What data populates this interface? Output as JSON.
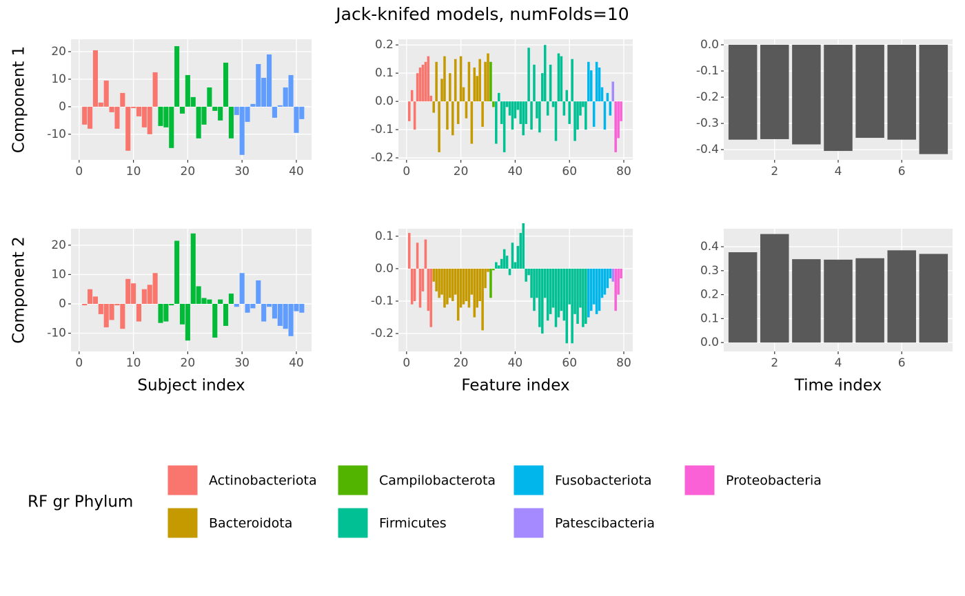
{
  "figure_title": "Jack-knifed models, numFolds=10",
  "legend": {
    "title": "RF gr Phylum",
    "items": [
      {
        "name": "Actinobacteriota",
        "color": "#F8766D"
      },
      {
        "name": "Bacteroidota",
        "color": "#C49A00"
      },
      {
        "name": "Campilobacterota",
        "color": "#53B400"
      },
      {
        "name": "Firmicutes",
        "color": "#00C094"
      },
      {
        "name": "Fusobacteriota",
        "color": "#00B6EB"
      },
      {
        "name": "Patescibacteria",
        "color": "#A58AFF"
      },
      {
        "name": "Proteobacteria",
        "color": "#FB61D7"
      }
    ]
  },
  "chart_data": [
    {
      "type": "bar",
      "ylabel": "Component 1",
      "x": [
        1,
        2,
        3,
        4,
        5,
        6,
        7,
        8,
        9,
        10,
        11,
        12,
        13,
        14,
        15,
        16,
        17,
        18,
        19,
        20,
        21,
        22,
        23,
        24,
        25,
        26,
        27,
        28,
        29,
        30,
        31,
        32,
        33,
        34,
        35,
        36,
        37,
        38,
        39,
        40,
        41
      ],
      "values": [
        -6.5,
        -8,
        20.5,
        1.5,
        9.5,
        -2,
        -8,
        5,
        -16,
        -0.5,
        -3.5,
        -7.5,
        -10,
        12.5,
        -7,
        -7.5,
        -15,
        22,
        -2.5,
        11.5,
        3.5,
        -11.5,
        -6.5,
        7,
        -1.5,
        -5,
        16,
        -11.5,
        -3,
        -17.5,
        -5.5,
        1,
        15.5,
        10.5,
        19,
        -4,
        0.5,
        7,
        11.5,
        -9.5,
        -4.5
      ],
      "colors": [
        "#F8766D",
        "#F8766D",
        "#F8766D",
        "#F8766D",
        "#F8766D",
        "#F8766D",
        "#F8766D",
        "#F8766D",
        "#F8766D",
        "#F8766D",
        "#F8766D",
        "#F8766D",
        "#F8766D",
        "#F8766D",
        "#00BA38",
        "#00BA38",
        "#00BA38",
        "#00BA38",
        "#00BA38",
        "#00BA38",
        "#00BA38",
        "#00BA38",
        "#00BA38",
        "#00BA38",
        "#00BA38",
        "#00BA38",
        "#00BA38",
        "#00BA38",
        "#619CFF",
        "#619CFF",
        "#619CFF",
        "#619CFF",
        "#619CFF",
        "#619CFF",
        "#619CFF",
        "#619CFF",
        "#619CFF",
        "#619CFF",
        "#619CFF",
        "#619CFF",
        "#619CFF"
      ],
      "xlim": [
        -1.5,
        42.8
      ],
      "xticks": [
        0,
        10,
        20,
        30,
        40
      ],
      "ylim": [
        -19.3,
        24.5
      ],
      "yticks": [
        -10,
        0,
        10,
        20
      ],
      "grid": true
    },
    {
      "type": "bar",
      "x": [
        1,
        2,
        3,
        4,
        5,
        6,
        7,
        8,
        9,
        10,
        11,
        12,
        13,
        14,
        15,
        16,
        17,
        18,
        19,
        20,
        21,
        22,
        23,
        24,
        25,
        26,
        27,
        28,
        29,
        30,
        31,
        32,
        33,
        34,
        35,
        36,
        37,
        38,
        39,
        40,
        41,
        42,
        43,
        44,
        45,
        46,
        47,
        48,
        49,
        50,
        51,
        52,
        53,
        54,
        55,
        56,
        57,
        58,
        59,
        60,
        61,
        62,
        63,
        64,
        65,
        66,
        67,
        68,
        69,
        70,
        71,
        72,
        73,
        74,
        75,
        76,
        77,
        78,
        79
      ],
      "values": [
        -0.07,
        0.04,
        -0.1,
        0.1,
        0.12,
        0.13,
        0.14,
        0.16,
        0.02,
        -0.04,
        0.14,
        -0.18,
        0.08,
        0.16,
        -0.1,
        0.1,
        -0.12,
        0.15,
        -0.08,
        0.16,
        0.05,
        -0.06,
        0.14,
        -0.15,
        0.12,
        0.09,
        0.15,
        -0.09,
        0.14,
        0.17,
        0.14,
        -0.02,
        -0.15,
        0.03,
        -0.08,
        -0.18,
        -0.02,
        -0.05,
        -0.1,
        -0.06,
        -0.03,
        -0.08,
        -0.12,
        -0.08,
        0.19,
        -0.1,
        0.13,
        -0.06,
        -0.11,
        0.1,
        0.2,
        -0.05,
        0.13,
        -0.02,
        -0.14,
        0.17,
        0.16,
        -0.05,
        0.04,
        -0.08,
        0.15,
        -0.14,
        -0.1,
        -0.05,
        -0.02,
        -0.1,
        0.14,
        0.11,
        -0.09,
        0.14,
        0.12,
        0.05,
        -0.1,
        0.03,
        -0.05,
        0.07,
        -0.18,
        -0.13,
        -0.07
      ],
      "colors": [
        "#F8766D",
        "#F8766D",
        "#F8766D",
        "#F8766D",
        "#F8766D",
        "#F8766D",
        "#F8766D",
        "#F8766D",
        "#F8766D",
        "#C49A00",
        "#C49A00",
        "#C49A00",
        "#C49A00",
        "#C49A00",
        "#C49A00",
        "#C49A00",
        "#C49A00",
        "#C49A00",
        "#C49A00",
        "#C49A00",
        "#C49A00",
        "#C49A00",
        "#C49A00",
        "#C49A00",
        "#C49A00",
        "#C49A00",
        "#C49A00",
        "#C49A00",
        "#C49A00",
        "#C49A00",
        "#53B400",
        "#53B400",
        "#00C094",
        "#00C094",
        "#00C094",
        "#00C094",
        "#00C094",
        "#00C094",
        "#00C094",
        "#00C094",
        "#00C094",
        "#00C094",
        "#00C094",
        "#00C094",
        "#00C094",
        "#00C094",
        "#00C094",
        "#00C094",
        "#00C094",
        "#00C094",
        "#00C094",
        "#00C094",
        "#00C094",
        "#00C094",
        "#00C094",
        "#00C094",
        "#00C094",
        "#00C094",
        "#00C094",
        "#00C094",
        "#00C094",
        "#00C094",
        "#00C094",
        "#00C094",
        "#00C094",
        "#00C094",
        "#00B6EB",
        "#00B6EB",
        "#00B6EB",
        "#00B6EB",
        "#00B6EB",
        "#00B6EB",
        "#00B6EB",
        "#00B6EB",
        "#00B6EB",
        "#A58AFF",
        "#FB61D7",
        "#FB61D7",
        "#FB61D7"
      ],
      "xlim": [
        -3,
        83.3
      ],
      "xticks": [
        0,
        20,
        40,
        60,
        80
      ],
      "ylim": [
        -0.207,
        0.22
      ],
      "yticks": [
        -0.2,
        -0.1,
        {
          "value": 0,
          "label": "0.0"
        },
        0.1,
        0.2
      ],
      "grid": true
    },
    {
      "type": "bar",
      "x": [
        1,
        2,
        3,
        4,
        5,
        6,
        7
      ],
      "values": [
        -0.362,
        -0.36,
        -0.38,
        -0.405,
        -0.355,
        -0.362,
        -0.417
      ],
      "color": "#595959",
      "xlim": [
        0.4,
        7.6
      ],
      "xticks": [
        2,
        4,
        6
      ],
      "ylim": [
        -0.439,
        0.021
      ],
      "yticks": [
        -0.4,
        -0.3,
        -0.2,
        -0.1,
        {
          "value": 0,
          "label": "0.0"
        }
      ],
      "grid": true
    },
    {
      "type": "bar",
      "ylabel": "Component 2",
      "xlabel": "Subject index",
      "x": [
        1,
        2,
        3,
        4,
        5,
        6,
        7,
        8,
        9,
        10,
        11,
        12,
        13,
        14,
        15,
        16,
        17,
        18,
        19,
        20,
        21,
        22,
        23,
        24,
        25,
        26,
        27,
        28,
        29,
        30,
        31,
        32,
        33,
        34,
        35,
        36,
        37,
        38,
        39,
        40,
        41
      ],
      "values": [
        -0.5,
        5,
        2.5,
        -3.5,
        -8,
        -5.5,
        -0.5,
        -8.5,
        8.5,
        7,
        -6,
        5,
        6.5,
        10.5,
        -6.5,
        -6,
        -0.5,
        21.5,
        -7,
        -12.5,
        24,
        6,
        2,
        1.5,
        -11.5,
        1.5,
        -7.5,
        3.5,
        -1,
        10.5,
        -3,
        -1.5,
        8,
        -6,
        -1,
        -5,
        -7.5,
        -8.5,
        -11,
        -2.5,
        -3
      ],
      "colors": [
        "#F8766D",
        "#F8766D",
        "#F8766D",
        "#F8766D",
        "#F8766D",
        "#F8766D",
        "#F8766D",
        "#F8766D",
        "#F8766D",
        "#F8766D",
        "#F8766D",
        "#F8766D",
        "#F8766D",
        "#F8766D",
        "#00BA38",
        "#00BA38",
        "#00BA38",
        "#00BA38",
        "#00BA38",
        "#00BA38",
        "#00BA38",
        "#00BA38",
        "#00BA38",
        "#00BA38",
        "#00BA38",
        "#00BA38",
        "#00BA38",
        "#00BA38",
        "#619CFF",
        "#619CFF",
        "#619CFF",
        "#619CFF",
        "#619CFF",
        "#619CFF",
        "#619CFF",
        "#619CFF",
        "#619CFF",
        "#619CFF",
        "#619CFF",
        "#619CFF",
        "#619CFF"
      ],
      "xlim": [
        -1.5,
        42.8
      ],
      "xticks": [
        0,
        10,
        20,
        30,
        40
      ],
      "ylim": [
        -16.2,
        25.6
      ],
      "yticks": [
        -10,
        0,
        10,
        20
      ],
      "grid": true
    },
    {
      "type": "bar",
      "xlabel": "Feature index",
      "x": [
        1,
        2,
        3,
        4,
        5,
        6,
        7,
        8,
        9,
        10,
        11,
        12,
        13,
        14,
        15,
        16,
        17,
        18,
        19,
        20,
        21,
        22,
        23,
        24,
        25,
        26,
        27,
        28,
        29,
        30,
        31,
        32,
        33,
        34,
        35,
        36,
        37,
        38,
        39,
        40,
        41,
        42,
        43,
        44,
        45,
        46,
        47,
        48,
        49,
        50,
        51,
        52,
        53,
        54,
        55,
        56,
        57,
        58,
        59,
        60,
        61,
        62,
        63,
        64,
        65,
        66,
        67,
        68,
        69,
        70,
        71,
        72,
        73,
        74,
        75,
        76,
        77,
        78,
        79
      ],
      "values": [
        0.11,
        -0.11,
        -0.1,
        0.08,
        -0.12,
        -0.07,
        0.09,
        -0.13,
        -0.18,
        -0.04,
        -0.07,
        -0.09,
        -0.08,
        -0.12,
        -0.11,
        -0.09,
        -0.1,
        -0.08,
        -0.16,
        -0.12,
        -0.11,
        -0.1,
        -0.12,
        -0.08,
        -0.15,
        -0.12,
        -0.1,
        -0.19,
        -0.06,
        -0.01,
        -0.09,
        -0.005,
        0.02,
        0.01,
        0.03,
        0.06,
        0.04,
        -0.02,
        0.08,
        0.02,
        0.07,
        0.11,
        0.14,
        -0.04,
        -0.02,
        -0.09,
        -0.13,
        -0.09,
        -0.18,
        -0.2,
        -0.09,
        -0.16,
        -0.14,
        -0.12,
        -0.18,
        -0.15,
        -0.13,
        -0.16,
        -0.23,
        -0.11,
        -0.23,
        -0.14,
        -0.17,
        -0.12,
        -0.18,
        -0.17,
        -0.15,
        -0.13,
        -0.11,
        -0.14,
        -0.13,
        -0.09,
        -0.08,
        -0.06,
        -0.03,
        -0.04,
        -0.13,
        -0.08,
        -0.03
      ],
      "colors": [
        "#F8766D",
        "#F8766D",
        "#F8766D",
        "#F8766D",
        "#F8766D",
        "#F8766D",
        "#F8766D",
        "#F8766D",
        "#F8766D",
        "#C49A00",
        "#C49A00",
        "#C49A00",
        "#C49A00",
        "#C49A00",
        "#C49A00",
        "#C49A00",
        "#C49A00",
        "#C49A00",
        "#C49A00",
        "#C49A00",
        "#C49A00",
        "#C49A00",
        "#C49A00",
        "#C49A00",
        "#C49A00",
        "#C49A00",
        "#C49A00",
        "#C49A00",
        "#C49A00",
        "#C49A00",
        "#53B400",
        "#53B400",
        "#00C094",
        "#00C094",
        "#00C094",
        "#00C094",
        "#00C094",
        "#00C094",
        "#00C094",
        "#00C094",
        "#00C094",
        "#00C094",
        "#00C094",
        "#00C094",
        "#00C094",
        "#00C094",
        "#00C094",
        "#00C094",
        "#00C094",
        "#00C094",
        "#00C094",
        "#00C094",
        "#00C094",
        "#00C094",
        "#00C094",
        "#00C094",
        "#00C094",
        "#00C094",
        "#00C094",
        "#00C094",
        "#00C094",
        "#00C094",
        "#00C094",
        "#00C094",
        "#00C094",
        "#00C094",
        "#00B6EB",
        "#00B6EB",
        "#00B6EB",
        "#00B6EB",
        "#00B6EB",
        "#00B6EB",
        "#00B6EB",
        "#00B6EB",
        "#00B6EB",
        "#A58AFF",
        "#FB61D7",
        "#FB61D7",
        "#FB61D7"
      ],
      "xlim": [
        -3,
        83.3
      ],
      "xticks": [
        0,
        20,
        40,
        60,
        80
      ],
      "ylim": [
        -0.255,
        0.123
      ],
      "yticks": [
        -0.2,
        -0.1,
        {
          "value": 0,
          "label": "0.0"
        },
        0.1
      ],
      "grid": true
    },
    {
      "type": "bar",
      "xlabel": "Time index",
      "x": [
        1,
        2,
        3,
        4,
        5,
        6,
        7
      ],
      "values": [
        0.377,
        0.453,
        0.348,
        0.346,
        0.352,
        0.385,
        0.37
      ],
      "color": "#595959",
      "xlim": [
        0.4,
        7.6
      ],
      "xticks": [
        2,
        4,
        6
      ],
      "ylim": [
        -0.037,
        0.475
      ],
      "yticks": [
        {
          "value": 0,
          "label": "0.0"
        },
        0.1,
        0.2,
        0.3,
        0.4
      ],
      "grid": true
    }
  ]
}
